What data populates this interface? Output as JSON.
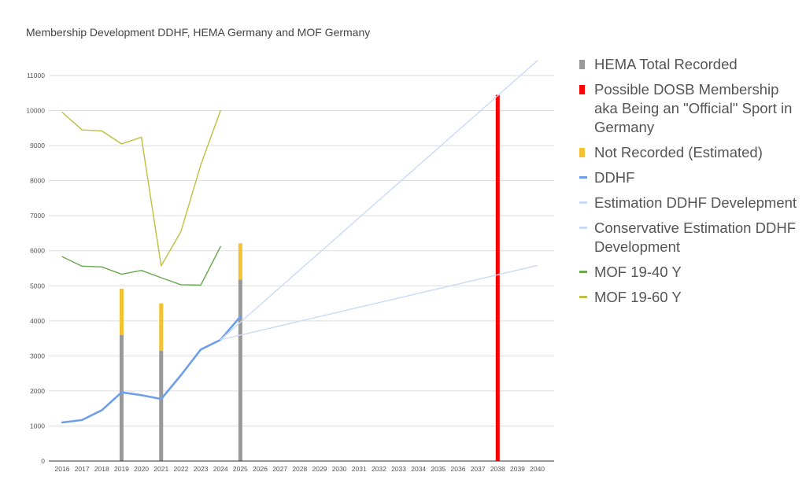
{
  "chart_data": {
    "type": "bar",
    "title": "Membership Development DDHF, HEMA Germany and MOF Germany",
    "xlabel": "",
    "ylabel": "",
    "ylim": [
      0,
      11000
    ],
    "yticks": [
      "0",
      "1000",
      "2000",
      "3000",
      "4000",
      "5000",
      "6000",
      "7000",
      "8000",
      "9000",
      "10000",
      "11000"
    ],
    "categories": [
      "2016",
      "2017",
      "2018",
      "2019",
      "2020",
      "2021",
      "2022",
      "2023",
      "2024",
      "2025",
      "2026",
      "2027",
      "2028",
      "2029",
      "2030",
      "2031",
      "2032",
      "2033",
      "2034",
      "2035",
      "2036",
      "2037",
      "2038",
      "2039",
      "2040"
    ],
    "grid": true,
    "legend_position": "right",
    "series": [
      {
        "name": "HEMA Total Recorded",
        "kind": "bar",
        "color": "#999999",
        "points": [
          {
            "x": "2019",
            "y": 3600
          },
          {
            "x": "2021",
            "y": 3150
          },
          {
            "x": "2025",
            "y": 5180
          }
        ]
      },
      {
        "name": "Possible DOSB Membership aka Being an \"Official\" Sport in Germany",
        "kind": "bar",
        "color": "#ff0000",
        "points": [
          {
            "x": "2038",
            "y": 10450
          }
        ]
      },
      {
        "name": "Not Recorded (Estimated)",
        "kind": "bar-stack",
        "color": "#f4c133",
        "points": [
          {
            "x": "2019",
            "y": 1320
          },
          {
            "x": "2021",
            "y": 1350
          },
          {
            "x": "2025",
            "y": 1030
          }
        ]
      },
      {
        "name": "DDHF",
        "kind": "line",
        "color": "#6d9eeb",
        "points": [
          {
            "x": "2016",
            "y": 1100
          },
          {
            "x": "2017",
            "y": 1170
          },
          {
            "x": "2018",
            "y": 1450
          },
          {
            "x": "2019",
            "y": 1960
          },
          {
            "x": "2020",
            "y": 1880
          },
          {
            "x": "2021",
            "y": 1770
          },
          {
            "x": "2022",
            "y": 2450
          },
          {
            "x": "2023",
            "y": 3180
          },
          {
            "x": "2024",
            "y": 3460
          },
          {
            "x": "2025",
            "y": 4120
          }
        ]
      },
      {
        "name": "Estimation DDHF Develepment",
        "kind": "line",
        "color": "#c9daf8",
        "points": [
          {
            "x": "2024",
            "y": 3460
          },
          {
            "x": "2040",
            "y": 11420
          }
        ]
      },
      {
        "name": "Conservative Estimation DDHF Development",
        "kind": "line",
        "color": "#c9daf8",
        "points": [
          {
            "x": "2024",
            "y": 3460
          },
          {
            "x": "2040",
            "y": 5580
          }
        ]
      },
      {
        "name": "MOF 19-40 Y",
        "kind": "line",
        "color": "#6aa84f",
        "points": [
          {
            "x": "2016",
            "y": 5830
          },
          {
            "x": "2017",
            "y": 5560
          },
          {
            "x": "2018",
            "y": 5540
          },
          {
            "x": "2019",
            "y": 5330
          },
          {
            "x": "2020",
            "y": 5440
          },
          {
            "x": "2021",
            "y": 5230
          },
          {
            "x": "2022",
            "y": 5030
          },
          {
            "x": "2023",
            "y": 5020
          },
          {
            "x": "2024",
            "y": 6120
          }
        ]
      },
      {
        "name": "MOF 19-60 Y",
        "kind": "line",
        "color": "#bfbf40",
        "points": [
          {
            "x": "2016",
            "y": 9950
          },
          {
            "x": "2017",
            "y": 9450
          },
          {
            "x": "2018",
            "y": 9420
          },
          {
            "x": "2019",
            "y": 9050
          },
          {
            "x": "2020",
            "y": 9240
          },
          {
            "x": "2021",
            "y": 5570
          },
          {
            "x": "2022",
            "y": 6550
          },
          {
            "x": "2023",
            "y": 8450
          },
          {
            "x": "2024",
            "y": 10000
          }
        ]
      }
    ]
  }
}
